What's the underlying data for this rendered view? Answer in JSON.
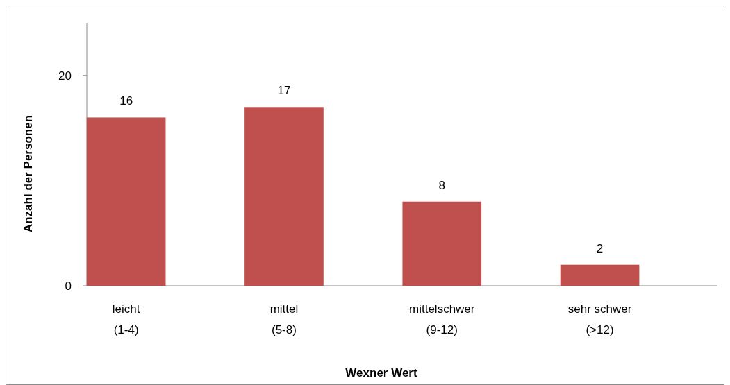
{
  "chart_data": {
    "type": "bar",
    "xlabel": "Wexner Wert",
    "ylabel": "Anzahl der Personen",
    "categories": [
      "leicht\n(1-4)",
      "mittel\n(5-8)",
      "mittelschwer\n(9-12)",
      "sehr schwer\n(>12)"
    ],
    "values": [
      16,
      17,
      8,
      2
    ],
    "color": "#c0504d",
    "ylim": [
      0,
      25
    ],
    "yticks": [
      0,
      20
    ],
    "data_labels": true,
    "grid": false
  }
}
